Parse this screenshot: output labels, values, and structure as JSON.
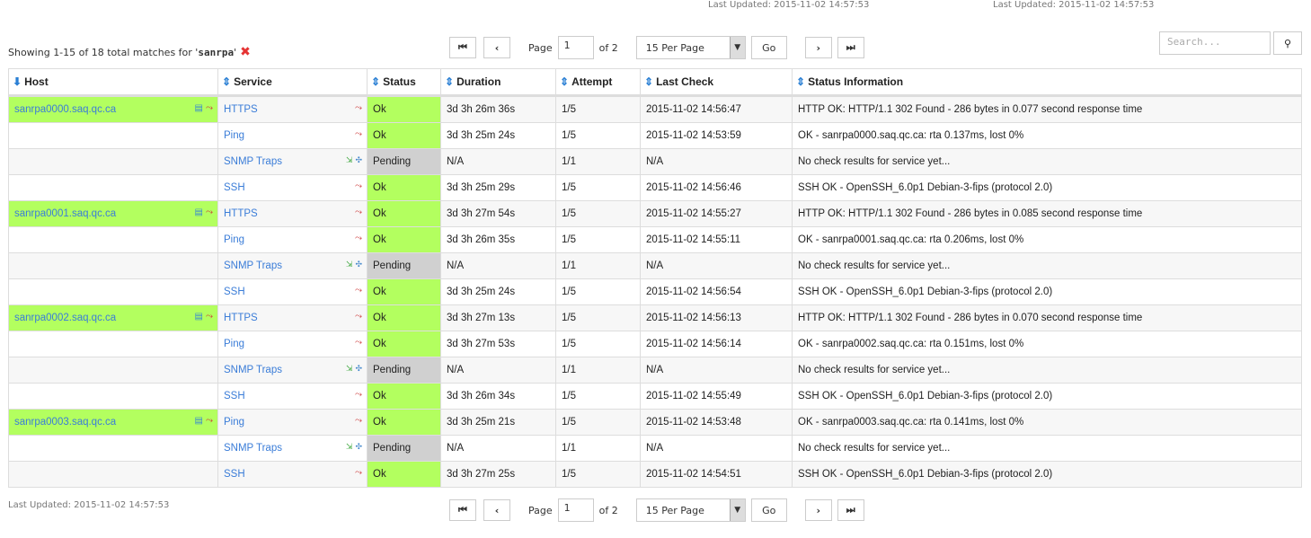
{
  "top_updated": [
    "Last Updated: 2015-11-02 14:57:53",
    "Last Updated: 2015-11-02 14:57:53"
  ],
  "summary": {
    "prefix": "Showing 1-15 of 18 total matches for '",
    "query": "sanrpa",
    "suffix": "'"
  },
  "pager": {
    "page_label": "Page",
    "page": "1",
    "of": "of 2",
    "per_page": "15 Per Page",
    "go": "Go",
    "first": "⏮",
    "prev": "‹",
    "next": "›",
    "last": "⏭"
  },
  "search": {
    "placeholder": "Search...",
    "button": "🔍"
  },
  "columns": [
    "Host",
    "Service",
    "Status",
    "Duration",
    "Attempt",
    "Last Check",
    "Status Information"
  ],
  "colors": {
    "ok": "#b3ff5f",
    "pending": "#d0d0d0",
    "link": "#3b7dd8"
  },
  "rows": [
    {
      "host": "sanrpa0000.saq.qc.ca",
      "service": "HTTPS",
      "status": "Ok",
      "duration": "3d 3h 26m 36s",
      "attempt": "1/5",
      "last_check": "2015-11-02 14:56:47",
      "info": "HTTP OK: HTTP/1.1 302 Found - 286 bytes in 0.077 second response time"
    },
    {
      "host": "",
      "service": "Ping",
      "status": "Ok",
      "duration": "3d 3h 25m 24s",
      "attempt": "1/5",
      "last_check": "2015-11-02 14:53:59",
      "info": "OK - sanrpa0000.saq.qc.ca: rta 0.137ms, lost 0%"
    },
    {
      "host": "",
      "service": "SNMP Traps",
      "status": "Pending",
      "duration": "N/A",
      "attempt": "1/1",
      "last_check": "N/A",
      "info": "No check results for service yet..."
    },
    {
      "host": "",
      "service": "SSH",
      "status": "Ok",
      "duration": "3d 3h 25m 29s",
      "attempt": "1/5",
      "last_check": "2015-11-02 14:56:46",
      "info": "SSH OK - OpenSSH_6.0p1 Debian-3-fips (protocol 2.0)"
    },
    {
      "host": "sanrpa0001.saq.qc.ca",
      "service": "HTTPS",
      "status": "Ok",
      "duration": "3d 3h 27m 54s",
      "attempt": "1/5",
      "last_check": "2015-11-02 14:55:27",
      "info": "HTTP OK: HTTP/1.1 302 Found - 286 bytes in 0.085 second response time"
    },
    {
      "host": "",
      "service": "Ping",
      "status": "Ok",
      "duration": "3d 3h 26m 35s",
      "attempt": "1/5",
      "last_check": "2015-11-02 14:55:11",
      "info": "OK - sanrpa0001.saq.qc.ca: rta 0.206ms, lost 0%"
    },
    {
      "host": "",
      "service": "SNMP Traps",
      "status": "Pending",
      "duration": "N/A",
      "attempt": "1/1",
      "last_check": "N/A",
      "info": "No check results for service yet..."
    },
    {
      "host": "",
      "service": "SSH",
      "status": "Ok",
      "duration": "3d 3h 25m 24s",
      "attempt": "1/5",
      "last_check": "2015-11-02 14:56:54",
      "info": "SSH OK - OpenSSH_6.0p1 Debian-3-fips (protocol 2.0)"
    },
    {
      "host": "sanrpa0002.saq.qc.ca",
      "service": "HTTPS",
      "status": "Ok",
      "duration": "3d 3h 27m 13s",
      "attempt": "1/5",
      "last_check": "2015-11-02 14:56:13",
      "info": "HTTP OK: HTTP/1.1 302 Found - 286 bytes in 0.070 second response time"
    },
    {
      "host": "",
      "service": "Ping",
      "status": "Ok",
      "duration": "3d 3h 27m 53s",
      "attempt": "1/5",
      "last_check": "2015-11-02 14:56:14",
      "info": "OK - sanrpa0002.saq.qc.ca: rta 0.151ms, lost 0%"
    },
    {
      "host": "",
      "service": "SNMP Traps",
      "status": "Pending",
      "duration": "N/A",
      "attempt": "1/1",
      "last_check": "N/A",
      "info": "No check results for service yet..."
    },
    {
      "host": "",
      "service": "SSH",
      "status": "Ok",
      "duration": "3d 3h 26m 34s",
      "attempt": "1/5",
      "last_check": "2015-11-02 14:55:49",
      "info": "SSH OK - OpenSSH_6.0p1 Debian-3-fips (protocol 2.0)"
    },
    {
      "host": "sanrpa0003.saq.qc.ca",
      "service": "Ping",
      "status": "Ok",
      "duration": "3d 3h 25m 21s",
      "attempt": "1/5",
      "last_check": "2015-11-02 14:53:48",
      "info": "OK - sanrpa0003.saq.qc.ca: rta 0.141ms, lost 0%"
    },
    {
      "host": "",
      "service": "SNMP Traps",
      "status": "Pending",
      "duration": "N/A",
      "attempt": "1/1",
      "last_check": "N/A",
      "info": "No check results for service yet..."
    },
    {
      "host": "",
      "service": "SSH",
      "status": "Ok",
      "duration": "3d 3h 27m 25s",
      "attempt": "1/5",
      "last_check": "2015-11-02 14:54:51",
      "info": "SSH OK - OpenSSH_6.0p1 Debian-3-fips (protocol 2.0)"
    }
  ],
  "bottom_updated": "Last Updated: 2015-11-02 14:57:53"
}
